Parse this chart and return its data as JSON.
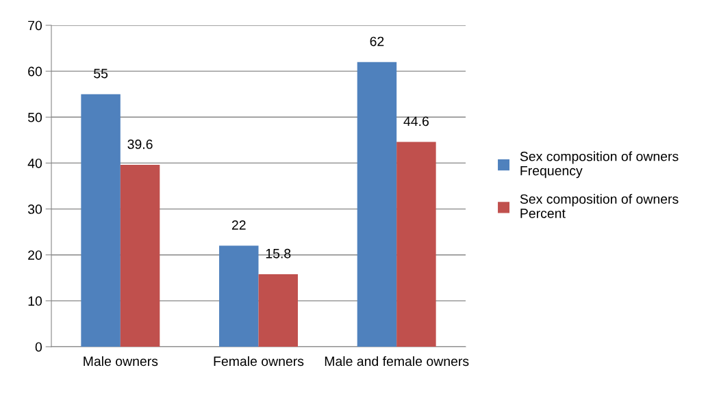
{
  "chart_data": {
    "type": "bar",
    "categories": [
      "Male owners",
      "Female owners",
      "Male and female owners"
    ],
    "series": [
      {
        "name": "Sex composition of owners Frequency",
        "color": "#4f81bd",
        "values": [
          55,
          22,
          62
        ]
      },
      {
        "name": "Sex composition of owners Percent",
        "color": "#c0504d",
        "values": [
          39.6,
          15.8,
          44.6
        ]
      }
    ],
    "ylim": [
      0,
      70
    ],
    "yticks": [
      0,
      10,
      20,
      30,
      40,
      50,
      60,
      70
    ],
    "grid": "y",
    "legend": "right",
    "data_labels": true
  }
}
